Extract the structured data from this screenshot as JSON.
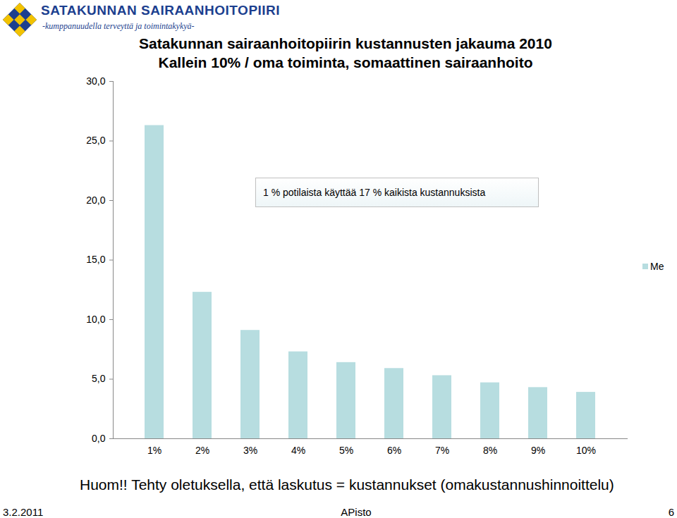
{
  "chart_data": {
    "type": "bar",
    "title": "Satakunnan sairaanhoitopiirin kustannusten jakauma 2010",
    "subtitle": "Kallein 10% / oma toiminta, somaattinen sairaanhoito",
    "annotation": "1 % potilaista käyttää 17 % kaikista kustannuksista",
    "categories": [
      "1%",
      "2%",
      "3%",
      "4%",
      "5%",
      "6%",
      "7%",
      "8%",
      "9%",
      "10%"
    ],
    "series": [
      {
        "name": "Me",
        "color": "#b7dde0",
        "values": [
          26.3,
          12.3,
          9.1,
          7.3,
          6.4,
          5.9,
          5.3,
          4.7,
          4.3,
          3.9
        ]
      }
    ],
    "ylim": [
      0,
      30
    ],
    "yticks": [
      {
        "value": 0,
        "label": "0,0"
      },
      {
        "value": 5,
        "label": "5,0"
      },
      {
        "value": 10,
        "label": "10,0"
      },
      {
        "value": 15,
        "label": "15,0"
      },
      {
        "value": 20,
        "label": "20,0"
      },
      {
        "value": 25,
        "label": "25,0"
      },
      {
        "value": 30,
        "label": "30,0"
      }
    ],
    "grid": false,
    "legend": "right"
  },
  "logo": {
    "name": "SATAKUNNAN SAIRAANHOITOPIIRI",
    "slogan": "-kumppanuudella terveyttä ja toimintakykyä-"
  },
  "note": "Huom!! Tehty oletuksella, että laskutus = kustannukset (omakustannushinnoittelu)",
  "footer": {
    "date": "3.2.2011",
    "author": "APisto",
    "page": "6"
  }
}
